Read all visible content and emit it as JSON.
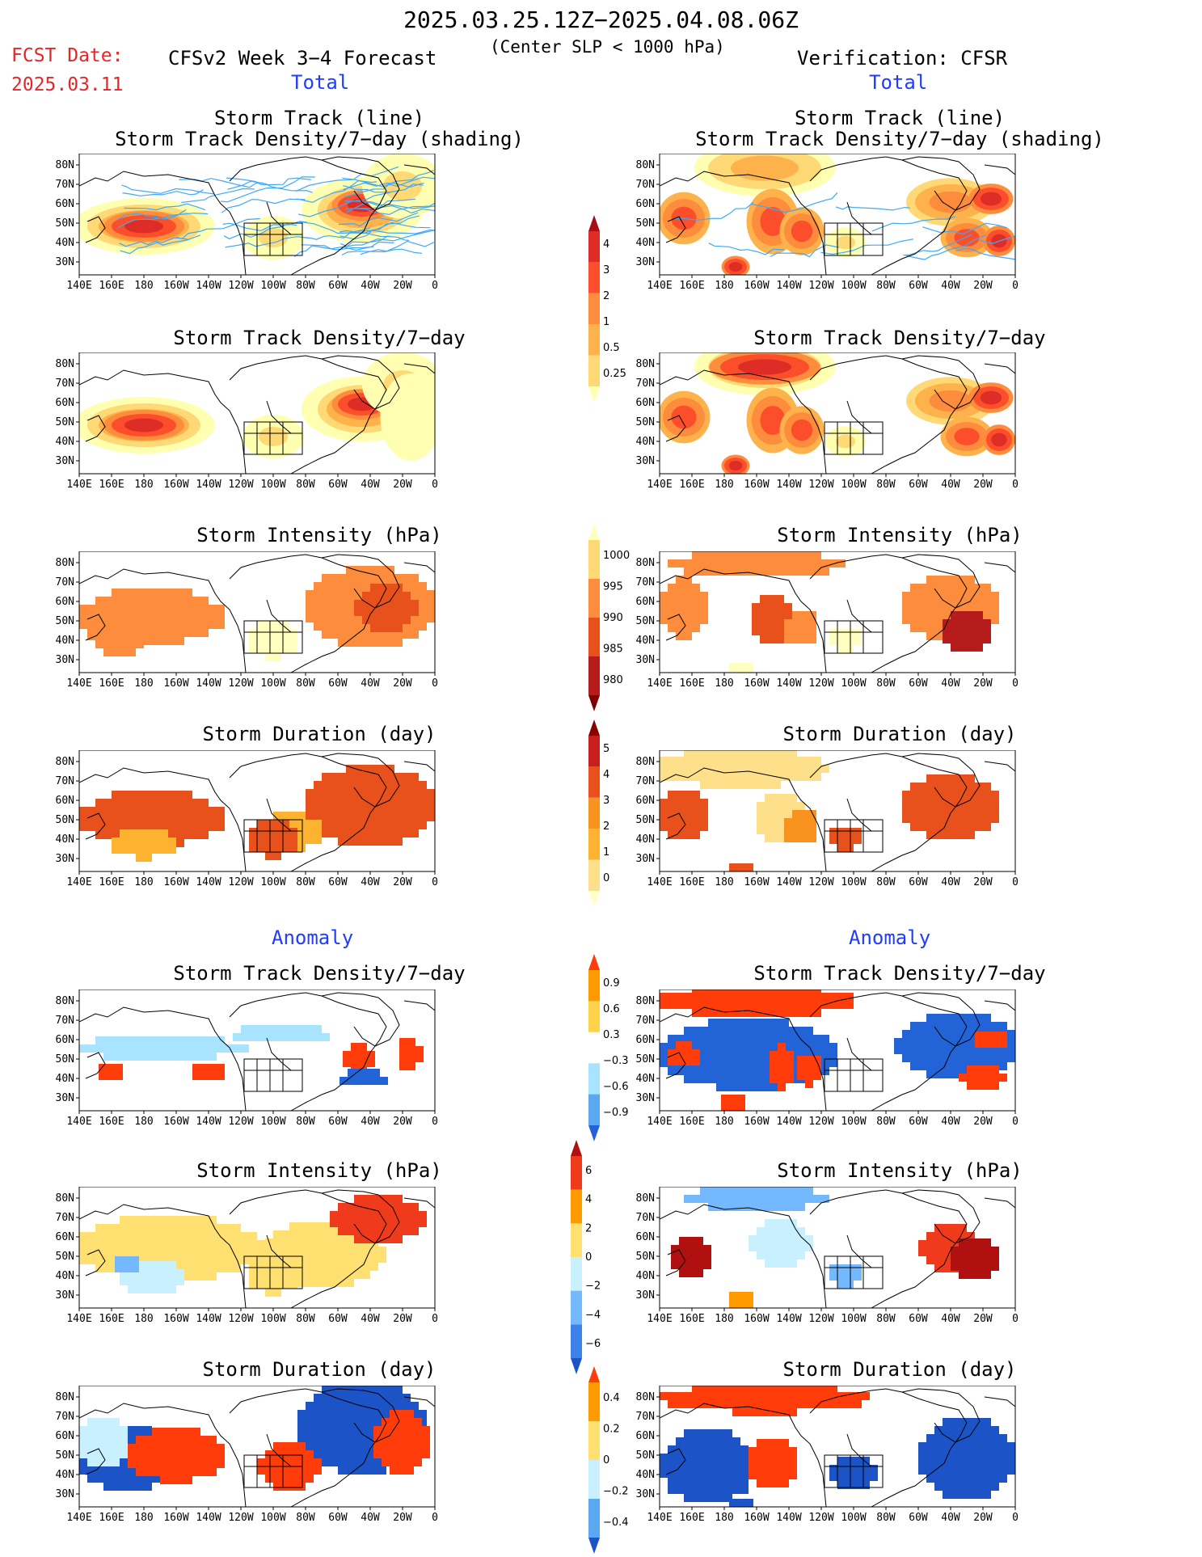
{
  "header": {
    "date_range": "2025.03.25.12Z−2025.04.08.06Z",
    "fcst_label": "FCST Date:",
    "fcst_date": "2025.03.11",
    "left_title": "CFSv2 Week 3−4 Forecast",
    "criterion": "(Center SLP < 1000 hPa)",
    "right_title": "Verification: CFSR"
  },
  "sections": {
    "total": "Total",
    "anomaly": "Anomaly"
  },
  "panel_titles": {
    "track_line": "Storm Track (line)",
    "track_shading": "Storm Track Density/7−day (shading)",
    "density": "Storm Track Density/7−day",
    "intensity": "Storm Intensity (hPa)",
    "duration": "Storm Duration (day)"
  },
  "axes": {
    "lat_labels": [
      "80N",
      "70N",
      "60N",
      "50N",
      "40N",
      "30N"
    ],
    "lon_labels": [
      "140E",
      "160E",
      "180",
      "160W",
      "140W",
      "120W",
      "100W",
      "80W",
      "60W",
      "40W",
      "20W",
      "0"
    ]
  },
  "colorbars": {
    "density_total": {
      "labels": [
        "4",
        "3",
        "2",
        "1",
        "0.5",
        "0.25"
      ],
      "colors": [
        "#a50f15",
        "#de2d26",
        "#fc4e2a",
        "#fd8d3c",
        "#feb24c",
        "#fed976",
        "#ffffb2"
      ]
    },
    "intensity_total": {
      "labels": [
        "1000",
        "995",
        "990",
        "985",
        "980"
      ],
      "colors": [
        "#ffffc0",
        "#fed976",
        "#fd8d3c",
        "#e8501c",
        "#b71c1c",
        "#7f0000"
      ]
    },
    "duration_total": {
      "labels": [
        "5",
        "4",
        "3",
        "2",
        "1",
        "0"
      ],
      "colors": [
        "#8b0000",
        "#c81e1e",
        "#e8501c",
        "#f7931e",
        "#fdb32f",
        "#fee08b",
        "#ffffc8"
      ]
    },
    "density_anom": {
      "labels": [
        "0.9",
        "0.6",
        "0.3",
        "−0.3",
        "−0.6",
        "−0.9"
      ],
      "colors": [
        "#ff3c0a",
        "#ff9a00",
        "#ffd24a",
        "#ffffff",
        "#a8e4ff",
        "#5aa8f0",
        "#2264d8"
      ]
    },
    "intensity_anom": {
      "labels": [
        "6",
        "4",
        "2",
        "0",
        "−2",
        "−4",
        "−6"
      ],
      "colors": [
        "#b01010",
        "#ef3b1c",
        "#ff9a00",
        "#ffe070",
        "#c8f0ff",
        "#74b9ff",
        "#3c82e8",
        "#1c54c8"
      ]
    },
    "duration_anom": {
      "labels": [
        "0.4",
        "0.2",
        "0",
        "−0.2",
        "−0.4"
      ],
      "colors": [
        "#ff3c0a",
        "#ff9a00",
        "#ffe070",
        "#c8f0ff",
        "#5aa8f0",
        "#1c54c8"
      ]
    }
  },
  "colors": {
    "fcst_red": "#e8262a",
    "section_blue": "#1f3cff",
    "track_line": "#3fa9f5"
  }
}
